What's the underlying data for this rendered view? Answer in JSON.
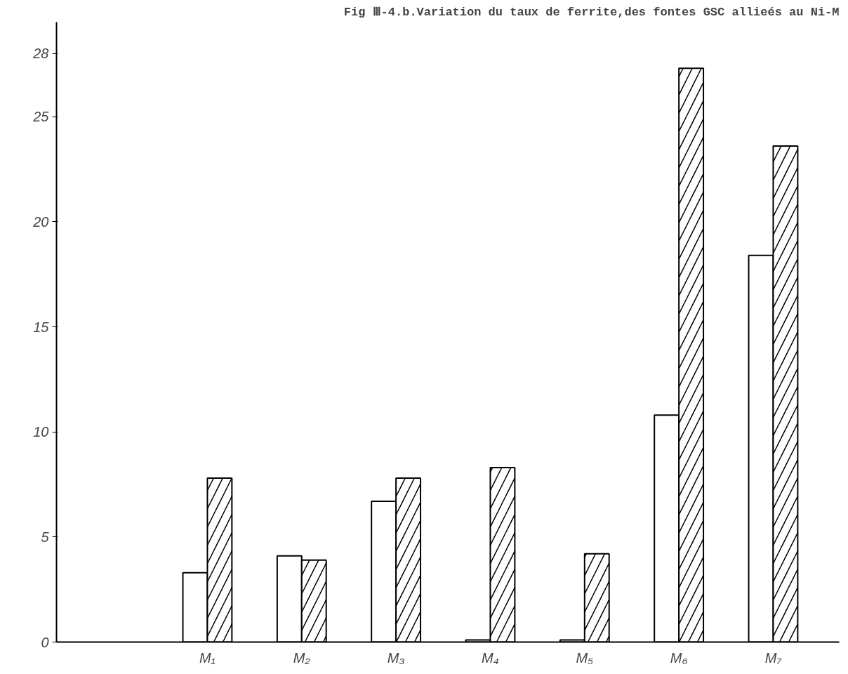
{
  "chart_data": {
    "type": "bar",
    "title": "Fig Ⅲ-4.b.Variation du taux de ferrite,des fontes GSC allieés au Ni-M",
    "categories": [
      "M₁",
      "M₂",
      "M₃",
      "M₄",
      "M₅",
      "M₆",
      "M₇"
    ],
    "series": [
      {
        "color": "#ffffff",
        "values": [
          3.3,
          4.1,
          6.7,
          0.1,
          0.1,
          10.8,
          18.4
        ]
      },
      {
        "color": "#ffffff",
        "values": [
          7.8,
          3.9,
          7.8,
          8.3,
          4.2,
          27.3,
          23.6
        ]
      }
    ],
    "ylim": [
      0,
      29.5
    ],
    "yticks": [
      0,
      5,
      10,
      15,
      20,
      25,
      28
    ],
    "grid": false
  }
}
